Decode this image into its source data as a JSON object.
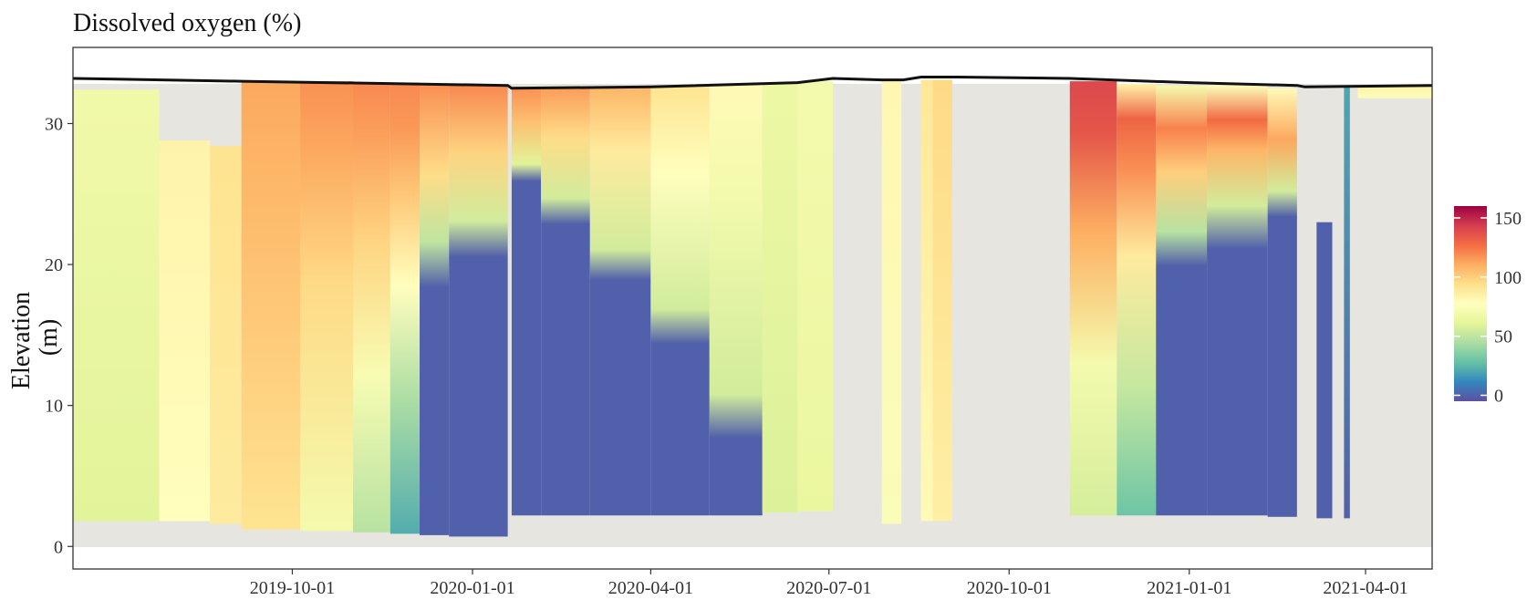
{
  "chart_data": {
    "type": "heatmap",
    "title": "Dissolved oxygen (%)",
    "xlabel": "",
    "ylabel": "Elevation\n(m)",
    "x_type": "date",
    "x_range": [
      "2019-06-11",
      "2021-05-05"
    ],
    "ylim": [
      -1.6,
      35.4
    ],
    "grid": false,
    "legend_position": "right",
    "x_ticks": [
      "2019-10-01",
      "2020-01-01",
      "2020-04-01",
      "2020-07-01",
      "2020-10-01",
      "2021-01-01",
      "2021-04-01"
    ],
    "y_ticks": [
      0,
      10,
      20,
      30
    ],
    "colorbar": {
      "min": -5,
      "max": 160,
      "ticks": [
        0,
        50,
        100,
        150
      ],
      "colors": [
        "#5E4FA2",
        "#3288BD",
        "#66C2A5",
        "#ABDDA4",
        "#E6F598",
        "#FFFFBF",
        "#FEE08B",
        "#FDAE61",
        "#F46D43",
        "#D53E4F",
        "#9E0142"
      ]
    },
    "no_data_color": "#E6E5E0",
    "periods": [
      {
        "start": "2019-06-11",
        "end": "2019-07-25",
        "bottom": 1.8,
        "top": 32.4,
        "profile": [
          [
            0,
            60
          ],
          [
            1,
            68
          ]
        ]
      },
      {
        "start": "2019-07-25",
        "end": "2019-08-20",
        "bottom": 1.8,
        "top": 28.8,
        "profile": [
          [
            0,
            78
          ],
          [
            1,
            84
          ]
        ]
      },
      {
        "start": "2019-08-20",
        "end": "2019-09-05",
        "bottom": 1.6,
        "top": 28.4,
        "profile": [
          [
            0,
            88
          ],
          [
            1,
            92
          ]
        ]
      },
      {
        "start": "2019-09-05",
        "end": "2019-10-05",
        "bottom": 1.2,
        "top": 33.0,
        "profile": [
          [
            0,
            92
          ],
          [
            0.8,
            108
          ],
          [
            1,
            112
          ]
        ]
      },
      {
        "start": "2019-10-05",
        "end": "2019-11-01",
        "bottom": 1.1,
        "top": 33.0,
        "profile": [
          [
            0,
            70
          ],
          [
            0.55,
            96
          ],
          [
            0.85,
            112
          ],
          [
            1,
            118
          ]
        ]
      },
      {
        "start": "2019-11-01",
        "end": "2019-11-20",
        "bottom": 1.0,
        "top": 32.9,
        "profile": [
          [
            0,
            48
          ],
          [
            0.35,
            72
          ],
          [
            0.65,
            98
          ],
          [
            0.88,
            114
          ],
          [
            1,
            120
          ]
        ]
      },
      {
        "start": "2019-11-20",
        "end": "2019-12-05",
        "bottom": 0.9,
        "top": 32.9,
        "profile": [
          [
            0,
            22
          ],
          [
            0.3,
            45
          ],
          [
            0.55,
            78
          ],
          [
            0.75,
            102
          ],
          [
            0.9,
            116
          ],
          [
            1,
            120
          ]
        ]
      },
      {
        "start": "2019-12-05",
        "end": "2019-12-20",
        "bottom": 0.8,
        "top": 32.8,
        "profile": [
          [
            0,
            0
          ],
          [
            0.55,
            0
          ],
          [
            0.65,
            50
          ],
          [
            0.8,
            95
          ],
          [
            1,
            118
          ]
        ]
      },
      {
        "start": "2019-12-20",
        "end": "2020-01-19",
        "bottom": 0.7,
        "top": 32.7,
        "profile": [
          [
            0,
            0
          ],
          [
            0.62,
            0
          ],
          [
            0.7,
            55
          ],
          [
            0.85,
            98
          ],
          [
            1,
            120
          ]
        ]
      },
      {
        "start": "2020-01-21",
        "end": "2020-02-05",
        "bottom": 2.2,
        "top": 32.6,
        "profile": [
          [
            0,
            0
          ],
          [
            0.78,
            0
          ],
          [
            0.82,
            60
          ],
          [
            0.92,
            105
          ],
          [
            1,
            118
          ]
        ]
      },
      {
        "start": "2020-02-05",
        "end": "2020-03-01",
        "bottom": 2.2,
        "top": 32.6,
        "profile": [
          [
            0,
            0
          ],
          [
            0.68,
            0
          ],
          [
            0.74,
            55
          ],
          [
            0.88,
            95
          ],
          [
            1,
            115
          ]
        ]
      },
      {
        "start": "2020-03-01",
        "end": "2020-04-01",
        "bottom": 2.2,
        "top": 32.6,
        "profile": [
          [
            0,
            0
          ],
          [
            0.55,
            0
          ],
          [
            0.62,
            55
          ],
          [
            0.85,
            88
          ],
          [
            1,
            108
          ]
        ]
      },
      {
        "start": "2020-04-01",
        "end": "2020-05-01",
        "bottom": 2.2,
        "top": 32.7,
        "profile": [
          [
            0,
            0
          ],
          [
            0.4,
            0
          ],
          [
            0.48,
            55
          ],
          [
            0.8,
            78
          ],
          [
            1,
            92
          ]
        ]
      },
      {
        "start": "2020-05-01",
        "end": "2020-05-28",
        "bottom": 2.2,
        "top": 32.8,
        "profile": [
          [
            0,
            0
          ],
          [
            0.18,
            0
          ],
          [
            0.28,
            55
          ],
          [
            0.75,
            70
          ],
          [
            1,
            80
          ]
        ]
      },
      {
        "start": "2020-05-28",
        "end": "2020-06-15",
        "bottom": 2.4,
        "top": 32.9,
        "profile": [
          [
            0,
            58
          ],
          [
            1,
            66
          ]
        ]
      },
      {
        "start": "2020-06-15",
        "end": "2020-07-03",
        "bottom": 2.5,
        "top": 33.0,
        "profile": [
          [
            0,
            64
          ],
          [
            1,
            70
          ]
        ]
      },
      {
        "start": "2020-07-28",
        "end": "2020-08-07",
        "bottom": 1.6,
        "top": 33.0,
        "profile": [
          [
            0,
            74
          ],
          [
            1,
            82
          ]
        ]
      },
      {
        "start": "2020-08-17",
        "end": "2020-08-23",
        "bottom": 1.8,
        "top": 33.1,
        "profile": [
          [
            0,
            80
          ],
          [
            1,
            90
          ]
        ]
      },
      {
        "start": "2020-08-23",
        "end": "2020-09-02",
        "bottom": 1.8,
        "top": 33.1,
        "profile": [
          [
            0,
            86
          ],
          [
            1,
            96
          ]
        ]
      },
      {
        "start": "2020-11-01",
        "end": "2020-11-25",
        "bottom": 2.2,
        "top": 33.0,
        "profile": [
          [
            0,
            56
          ],
          [
            0.35,
            70
          ],
          [
            0.65,
            110
          ],
          [
            0.88,
            135
          ],
          [
            1,
            140
          ]
        ]
      },
      {
        "start": "2020-11-25",
        "end": "2020-12-15",
        "bottom": 2.2,
        "top": 32.8,
        "profile": [
          [
            0,
            30
          ],
          [
            0.3,
            52
          ],
          [
            0.6,
            88
          ],
          [
            0.8,
            118
          ],
          [
            0.92,
            130
          ],
          [
            1,
            85
          ]
        ]
      },
      {
        "start": "2020-12-15",
        "end": "2021-01-10",
        "bottom": 2.2,
        "top": 32.7,
        "profile": [
          [
            0,
            0
          ],
          [
            0.58,
            0
          ],
          [
            0.66,
            48
          ],
          [
            0.8,
            100
          ],
          [
            0.9,
            122
          ],
          [
            1,
            70
          ]
        ]
      },
      {
        "start": "2021-01-10",
        "end": "2021-02-10",
        "bottom": 2.2,
        "top": 32.7,
        "profile": [
          [
            0,
            0
          ],
          [
            0.62,
            0
          ],
          [
            0.72,
            55
          ],
          [
            0.85,
            108
          ],
          [
            0.92,
            128
          ],
          [
            1,
            75
          ]
        ]
      },
      {
        "start": "2021-02-10",
        "end": "2021-02-25",
        "bottom": 2.1,
        "top": 32.5,
        "profile": [
          [
            0,
            0
          ],
          [
            0.7,
            0
          ],
          [
            0.76,
            55
          ],
          [
            0.88,
            112
          ],
          [
            1,
            80
          ]
        ]
      },
      {
        "start": "2021-03-07",
        "end": "2021-03-15",
        "bottom": 2.0,
        "top": 23.0,
        "profile": [
          [
            0,
            0
          ],
          [
            1,
            0
          ]
        ]
      },
      {
        "start": "2021-03-21",
        "end": "2021-03-24",
        "bottom": 2.0,
        "top": 32.6,
        "profile": [
          [
            0,
            0
          ],
          [
            1,
            20
          ]
        ]
      },
      {
        "start": "2021-03-28",
        "end": "2021-05-05",
        "bottom": 31.8,
        "top": 32.7,
        "profile": [
          [
            0,
            75
          ],
          [
            1,
            85
          ]
        ]
      }
    ],
    "surface_line": [
      [
        "2019-06-11",
        33.2
      ],
      [
        "2019-09-05",
        33.0
      ],
      [
        "2020-01-19",
        32.7
      ],
      [
        "2020-01-21",
        32.5
      ],
      [
        "2020-04-01",
        32.6
      ],
      [
        "2020-06-15",
        32.9
      ],
      [
        "2020-07-03",
        33.2
      ],
      [
        "2020-07-28",
        33.1
      ],
      [
        "2020-08-08",
        33.1
      ],
      [
        "2020-08-17",
        33.3
      ],
      [
        "2020-09-05",
        33.3
      ],
      [
        "2020-11-01",
        33.2
      ],
      [
        "2021-01-01",
        32.9
      ],
      [
        "2021-02-25",
        32.7
      ],
      [
        "2021-03-01",
        32.6
      ],
      [
        "2021-05-05",
        32.7
      ]
    ]
  }
}
